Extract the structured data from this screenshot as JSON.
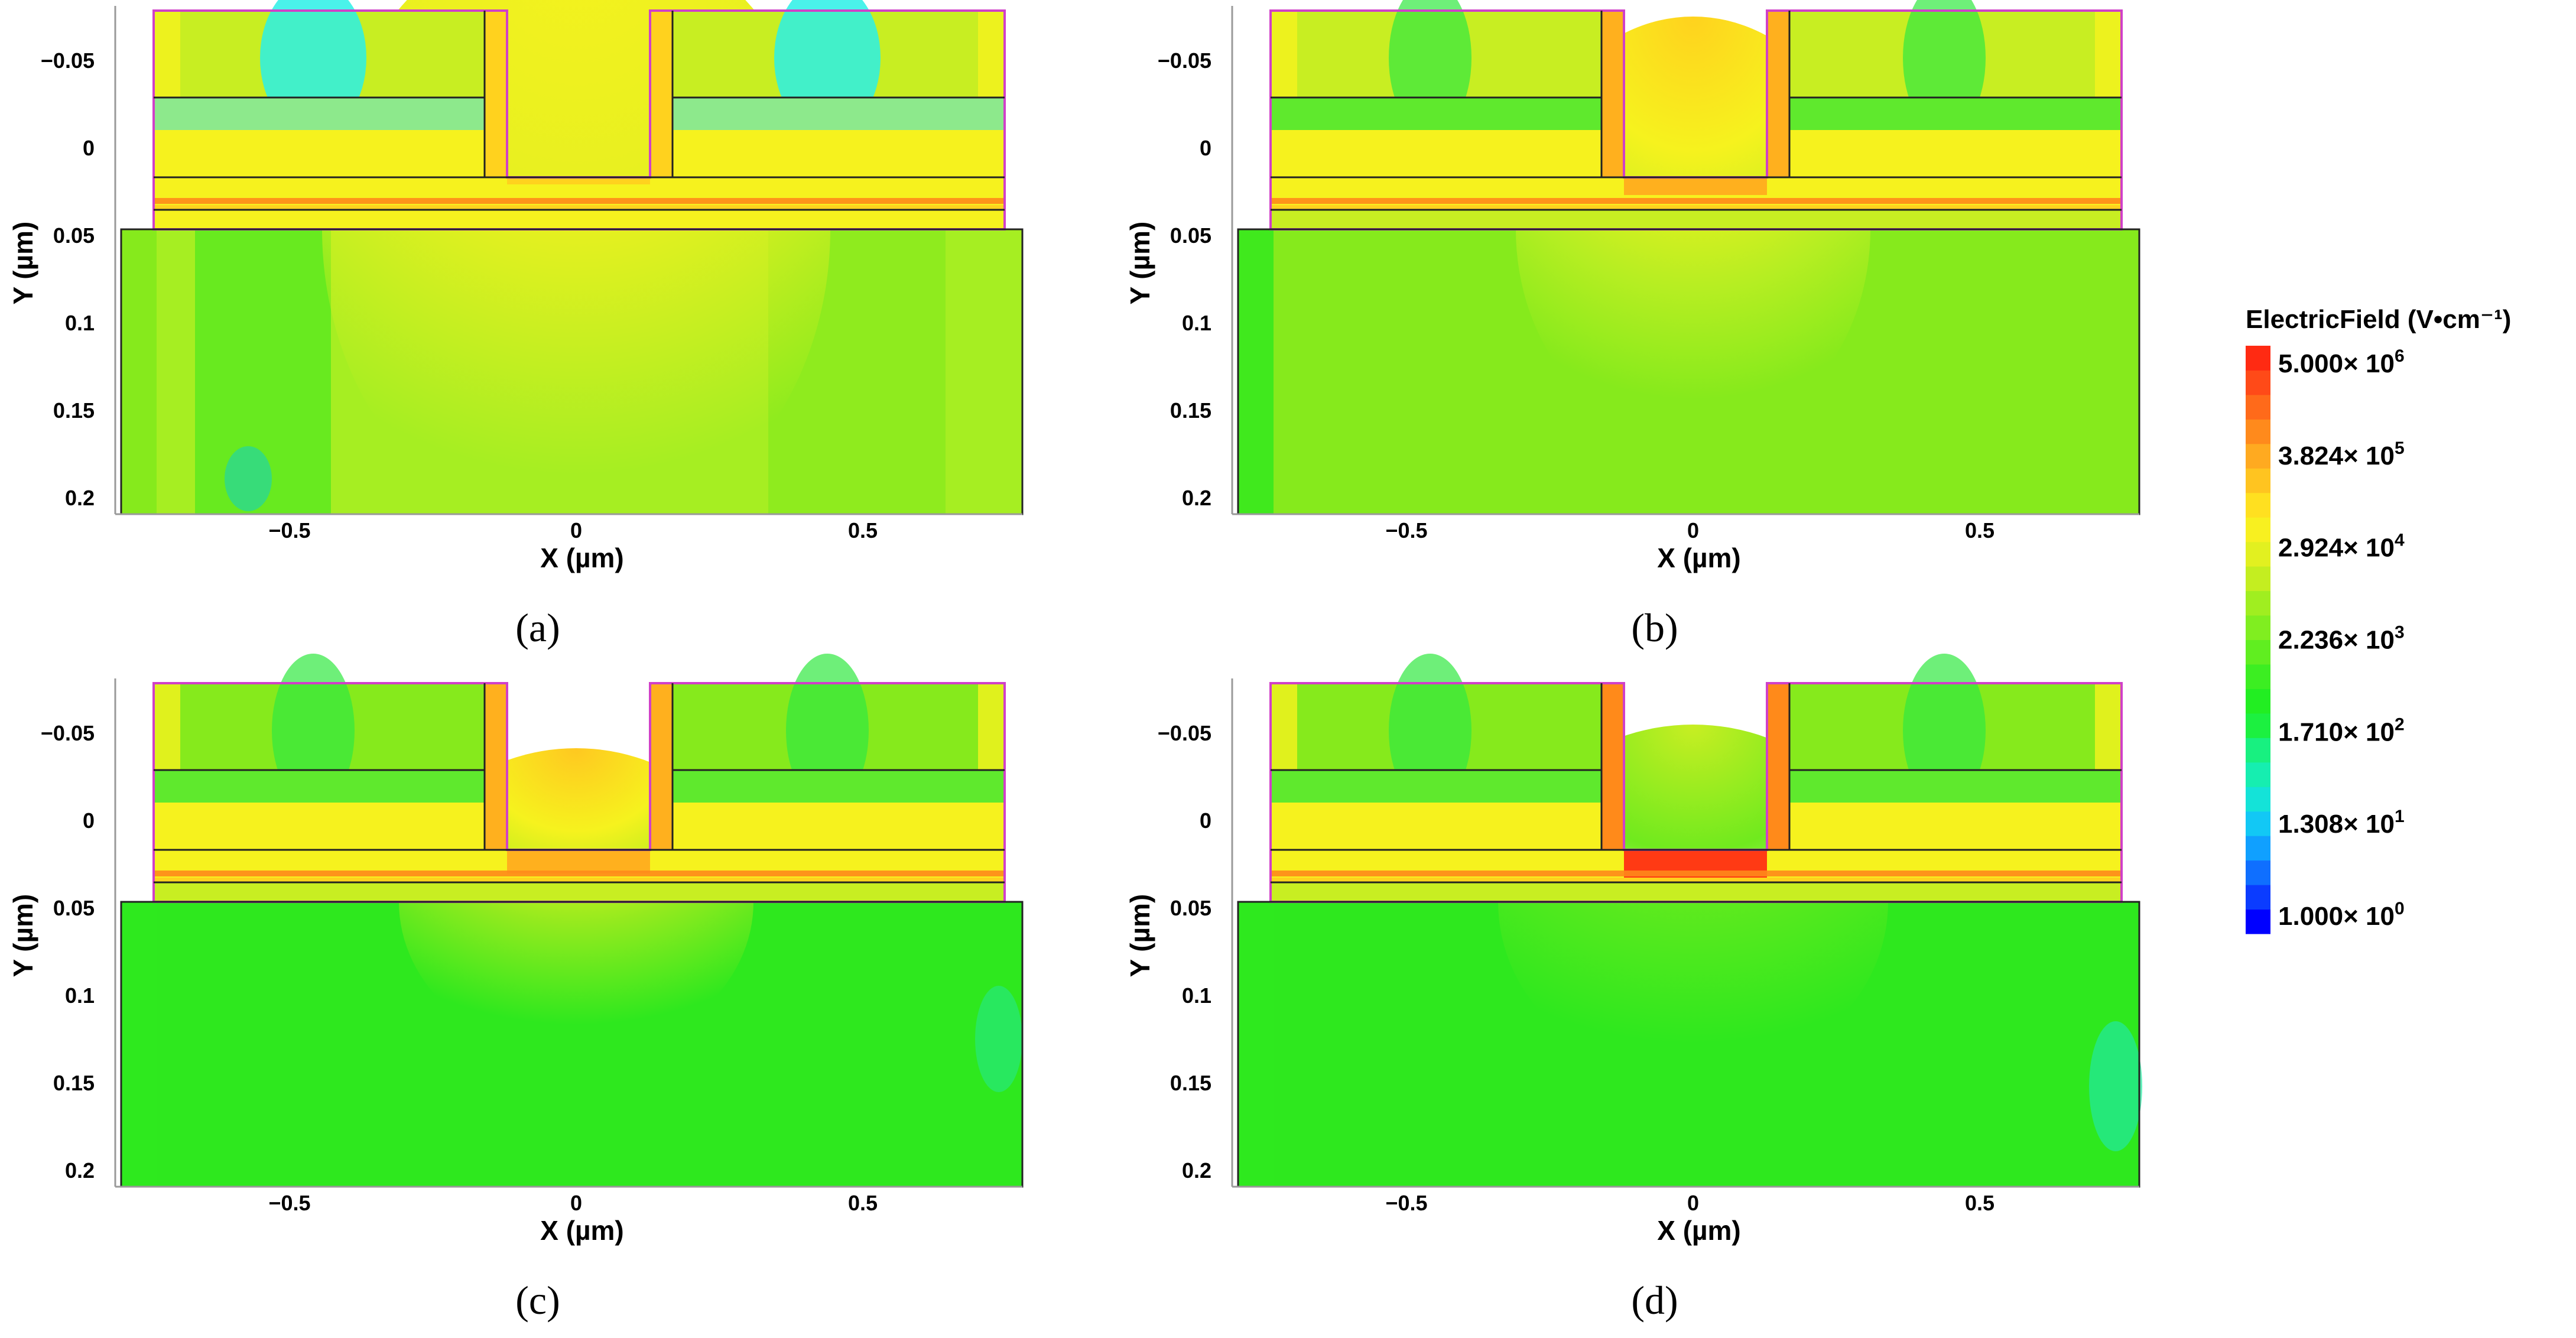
{
  "chart_data": [
    {
      "type": "heatmap",
      "panel_label": "(a)",
      "xlabel": "X (µm)",
      "ylabel": "Y (µm)",
      "x_ticks": [
        "−0.5",
        "0",
        "0.5"
      ],
      "y_ticks": [
        "−0.05",
        "0",
        "0.05",
        "0.1",
        "0.15",
        "0.2"
      ],
      "xlim": [
        -0.8,
        0.75
      ],
      "ylim": [
        -0.08,
        0.21
      ],
      "gate_region_field_level": "yellow",
      "substrate_field_level": "yellow-green"
    },
    {
      "type": "heatmap",
      "panel_label": "(b)",
      "xlabel": "X (µm)",
      "ylabel": "Y (µm)",
      "x_ticks": [
        "−0.5",
        "0",
        "0.5"
      ],
      "y_ticks": [
        "−0.05",
        "0",
        "0.05",
        "0.1",
        "0.15",
        "0.2"
      ],
      "xlim": [
        -0.8,
        0.75
      ],
      "ylim": [
        -0.08,
        0.21
      ],
      "gate_region_field_level": "orange",
      "substrate_field_level": "green"
    },
    {
      "type": "heatmap",
      "panel_label": "(c)",
      "xlabel": "X (µm)",
      "ylabel": "Y (µm)",
      "x_ticks": [
        "−0.5",
        "0",
        "0.5"
      ],
      "y_ticks": [
        "−0.05",
        "0",
        "0.05",
        "0.1",
        "0.15",
        "0.2"
      ],
      "xlim": [
        -0.8,
        0.75
      ],
      "ylim": [
        -0.08,
        0.21
      ],
      "gate_region_field_level": "orange",
      "substrate_field_level": "green"
    },
    {
      "type": "heatmap",
      "panel_label": "(d)",
      "xlabel": "X (µm)",
      "ylabel": "Y (µm)",
      "x_ticks": [
        "−0.5",
        "0",
        "0.5"
      ],
      "y_ticks": [
        "−0.05",
        "0",
        "0.05",
        "0.1",
        "0.15",
        "0.2"
      ],
      "xlim": [
        -0.8,
        0.75
      ],
      "ylim": [
        -0.08,
        0.21
      ],
      "gate_region_field_level": "red",
      "substrate_field_level": "green"
    }
  ],
  "colorbar": {
    "title": "ElectricField (V•cm⁻¹)",
    "labels": [
      {
        "mantissa": "5.000×",
        "base": "10",
        "exp": "6"
      },
      {
        "mantissa": "3.824×",
        "base": "10",
        "exp": "5"
      },
      {
        "mantissa": "2.924×",
        "base": "10",
        "exp": "4"
      },
      {
        "mantissa": "2.236×",
        "base": "10",
        "exp": "3"
      },
      {
        "mantissa": "1.710×",
        "base": "10",
        "exp": "2"
      },
      {
        "mantissa": "1.308×",
        "base": "10",
        "exp": "1"
      },
      {
        "mantissa": "1.000×",
        "base": "10",
        "exp": "0"
      }
    ],
    "colors": [
      "#0000ff",
      "#0b3cff",
      "#0f6fff",
      "#10a0ff",
      "#12c8f5",
      "#14e3d8",
      "#16eeb0",
      "#18f080",
      "#1cf040",
      "#22ee22",
      "#3cee22",
      "#60ee20",
      "#80ee20",
      "#a0ee20",
      "#c4ee20",
      "#e2f020",
      "#f8f020",
      "#ffe020",
      "#ffc420",
      "#ffaa20",
      "#ff8a1c",
      "#ff6a1a",
      "#ff4a18",
      "#ff2a12"
    ]
  },
  "palette": {
    "cyan": "#2af0e6",
    "green": "#2ee81e",
    "lime": "#86ea1c",
    "yellowgreen": "#c8ee22",
    "yellow": "#f6f21e",
    "gold": "#ffd21e",
    "orange": "#ffb01e",
    "deeporange": "#ff8a1a",
    "red": "#ff3a14",
    "outline": "#d040c8"
  }
}
